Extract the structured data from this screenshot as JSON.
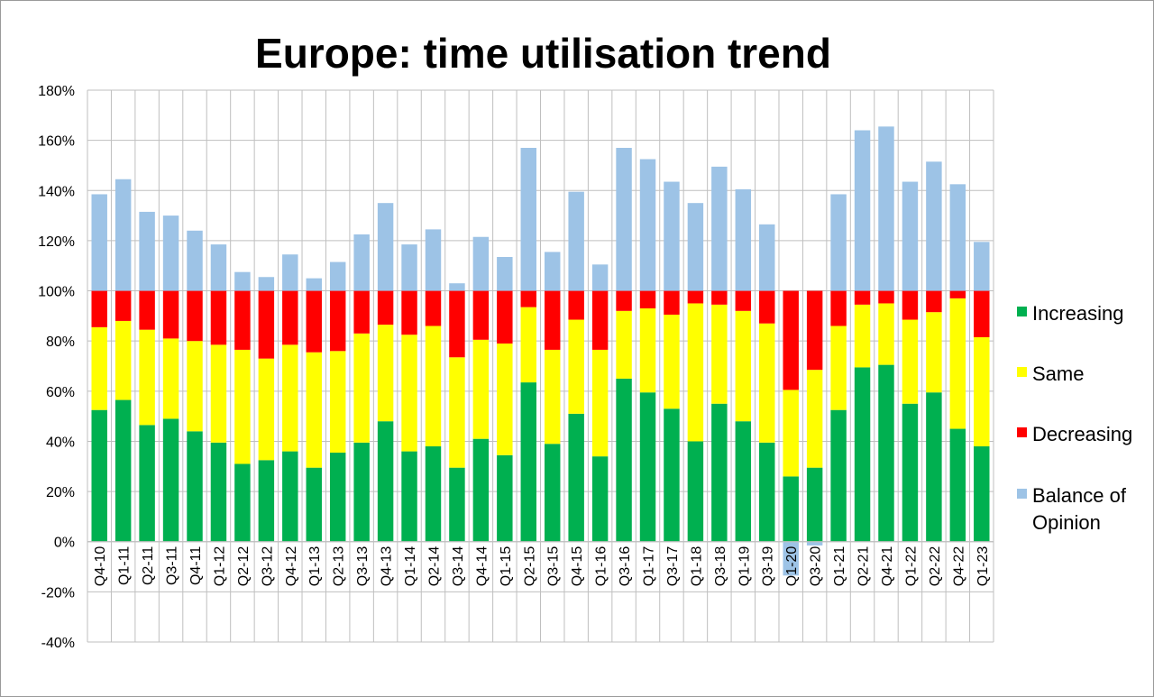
{
  "chart_data": {
    "type": "bar",
    "stacked": true,
    "title": "Europe: time utilisation trend",
    "xlabel": "",
    "ylabel": "",
    "ylim": [
      -40,
      180
    ],
    "yticks": [
      -40,
      -20,
      0,
      20,
      40,
      60,
      80,
      100,
      120,
      140,
      160,
      180
    ],
    "ytick_suffix": "%",
    "grid": true,
    "legend_position": "right",
    "categories": [
      "Q4-10",
      "Q1-11",
      "Q2-11",
      "Q3-11",
      "Q4-11",
      "Q1-12",
      "Q2-12",
      "Q3-12",
      "Q4-12",
      "Q1-13",
      "Q2-13",
      "Q3-13",
      "Q4-13",
      "Q1-14",
      "Q2-14",
      "Q3-14",
      "Q4-14",
      "Q1-15",
      "Q2-15",
      "Q3-15",
      "Q4-15",
      "Q1-16",
      "Q3-16",
      "Q1-17",
      "Q3-17",
      "Q1-18",
      "Q3-18",
      "Q1-19",
      "Q3-19",
      "Q1-20",
      "Q3-20",
      "Q1-21",
      "Q2-21",
      "Q4-21",
      "Q1-22",
      "Q2-22",
      "Q4-22",
      "Q1-23"
    ],
    "series": [
      {
        "name": "Increasing",
        "color": "#00b050",
        "values": [
          52.5,
          56.5,
          46.5,
          49,
          44,
          39.5,
          31,
          32.5,
          36,
          29.5,
          35.5,
          39.5,
          48,
          36,
          38,
          29.5,
          41,
          34.5,
          63.5,
          39,
          51,
          34,
          65,
          59.5,
          53,
          40,
          55,
          48,
          39.5,
          26,
          29.5,
          52.5,
          69.5,
          70.5,
          55,
          59.5,
          45,
          38
        ]
      },
      {
        "name": "Same",
        "color": "#ffff00",
        "values": [
          33,
          31.5,
          38,
          32,
          36,
          39,
          45.5,
          40.5,
          42.5,
          46,
          40.5,
          43.5,
          38.5,
          46.5,
          48,
          44,
          39.5,
          44.5,
          30,
          37.5,
          37.5,
          42.5,
          27,
          33.5,
          37.5,
          55,
          39.5,
          44,
          47.5,
          34.5,
          39,
          33.5,
          25,
          24.5,
          33.5,
          32,
          52,
          43.5
        ]
      },
      {
        "name": "Decreasing",
        "color": "#ff0000",
        "values": [
          14.5,
          12,
          15.5,
          19,
          20,
          21.5,
          23.5,
          27,
          21.5,
          24.5,
          24,
          17,
          13.5,
          17.5,
          14,
          26.5,
          19.5,
          21,
          6.5,
          23.5,
          11.5,
          23.5,
          8,
          7,
          9.5,
          5,
          5.5,
          8,
          13,
          39.5,
          31.5,
          14,
          5.5,
          5,
          11.5,
          8.5,
          3,
          18.5
        ]
      },
      {
        "name": "Balance of Opinion",
        "color": "#9dc3e6",
        "values": [
          38.5,
          44.5,
          31.5,
          30,
          24,
          18.5,
          7.5,
          5.5,
          14.5,
          5,
          11.5,
          22.5,
          35,
          18.5,
          24.5,
          3,
          21.5,
          13.5,
          57,
          15.5,
          39.5,
          10.5,
          57,
          52.5,
          43.5,
          35,
          49.5,
          40.5,
          26.5,
          -13.5,
          -1.5,
          38.5,
          64,
          65.5,
          43.5,
          51.5,
          42.5,
          19.5
        ]
      }
    ]
  },
  "legend": [
    {
      "label": "Increasing",
      "color": "#00b050"
    },
    {
      "label": "Same",
      "color": "#ffff00"
    },
    {
      "label": "Decreasing",
      "color": "#ff0000"
    },
    {
      "label": "Balance of Opinion",
      "color": "#9dc3e6"
    }
  ]
}
